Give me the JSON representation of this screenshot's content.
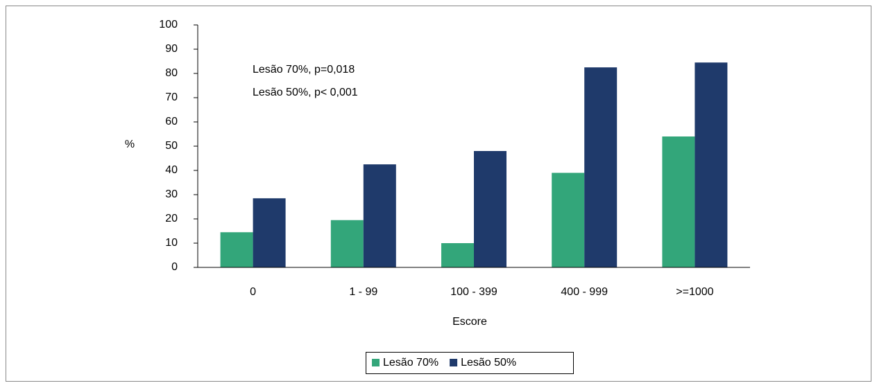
{
  "chart_data": {
    "type": "bar",
    "categories": [
      "0",
      "1 - 99",
      "100 - 399",
      "400 - 999",
      ">=1000"
    ],
    "series": [
      {
        "name": "Lesão 70%",
        "color": "#33a67a",
        "values": [
          14.5,
          19.5,
          10,
          39,
          54
        ]
      },
      {
        "name": "Lesão 50%",
        "color": "#1f3a6b",
        "values": [
          28.5,
          42.5,
          48,
          82.5,
          84.5
        ]
      }
    ],
    "ylim": [
      0,
      100
    ],
    "yticks": [
      0,
      10,
      20,
      30,
      40,
      50,
      60,
      70,
      80,
      90,
      100
    ],
    "y_label": "%",
    "x_label": "Escore",
    "annotations": [
      "Lesão 70%, p=0,018",
      "Lesão 50%, p< 0,001"
    ],
    "legend": "bottom",
    "grid": false
  }
}
